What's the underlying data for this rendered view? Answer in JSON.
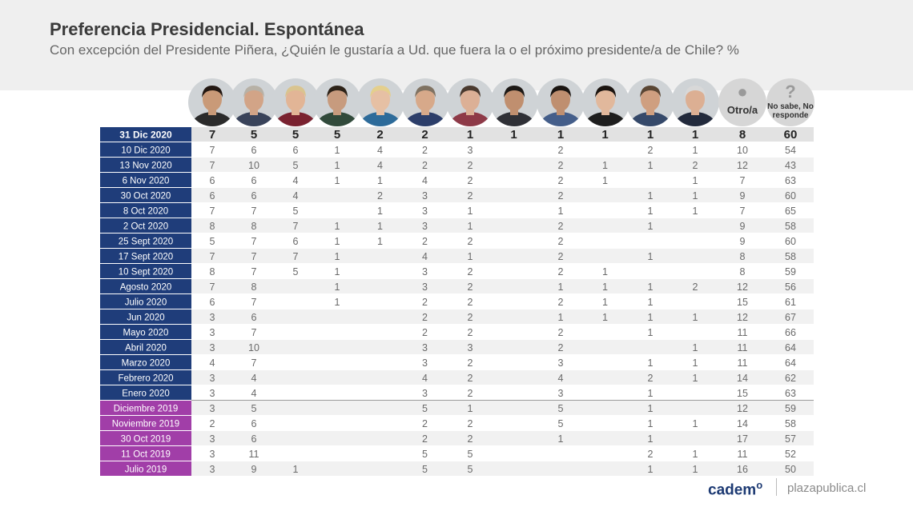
{
  "header": {
    "title": "Preferencia Presidencial. Espontánea",
    "subtitle": "Con excepción del Presidente Piñera, ¿Quién le gustaría a Ud. que fuera la o el próximo presidente/a de Chile? %"
  },
  "candidates": [
    {
      "type": "photo",
      "shirt": "#2b2b2b",
      "skin": "#c99a78",
      "hair": "#231812"
    },
    {
      "type": "photo",
      "shirt": "#39435a",
      "skin": "#d2a487",
      "hair": "#b7b1a6"
    },
    {
      "type": "photo",
      "shirt": "#7a2230",
      "skin": "#e2b596",
      "hair": "#d9c48f"
    },
    {
      "type": "photo",
      "shirt": "#314a3b",
      "skin": "#c79b7e",
      "hair": "#2c2218"
    },
    {
      "type": "photo",
      "shirt": "#2d6b9a",
      "skin": "#e6c0a4",
      "hair": "#e4cf8d"
    },
    {
      "type": "photo",
      "shirt": "#2c3e6a",
      "skin": "#d7a98a",
      "hair": "#7f7262"
    },
    {
      "type": "photo",
      "shirt": "#8e3a48",
      "skin": "#dcb096",
      "hair": "#4a3a2f"
    },
    {
      "type": "photo",
      "shirt": "#2f3036",
      "skin": "#c08f6f",
      "hair": "#1d1916"
    },
    {
      "type": "photo",
      "shirt": "#445e8a",
      "skin": "#bf8f70",
      "hair": "#1a1512"
    },
    {
      "type": "photo",
      "shirt": "#1e1e1e",
      "skin": "#e1b89c",
      "hair": "#1b1410"
    },
    {
      "type": "photo",
      "shirt": "#35496a",
      "skin": "#cf9f80",
      "hair": "#5a4634"
    },
    {
      "type": "photo",
      "shirt": "#222a3c",
      "skin": "#dcaf93",
      "hair": "#d8d8d8"
    },
    {
      "type": "text",
      "label": "Otro/a",
      "icon": "person-icon"
    },
    {
      "type": "text",
      "label": "No sabe, No responde",
      "icon": "question-icon"
    }
  ],
  "chart_data": {
    "type": "table",
    "title": "Preferencia Presidencial. Espontánea",
    "columns": [
      "",
      "",
      "",
      "",
      "",
      "",
      "",
      "",
      "",
      "",
      "",
      "",
      "Otro/a",
      "No sabe, No responde"
    ],
    "rows": [
      {
        "label": "31 Dic 2020",
        "highlight": true,
        "values": [
          "7",
          "5",
          "5",
          "5",
          "2",
          "2",
          "1",
          "1",
          "1",
          "1",
          "1",
          "1",
          "8",
          "60"
        ]
      },
      {
        "label": "10 Dic 2020",
        "values": [
          "7",
          "6",
          "6",
          "1",
          "4",
          "2",
          "3",
          "",
          "2",
          "",
          "2",
          "1",
          "10",
          "54"
        ]
      },
      {
        "label": "13 Nov 2020",
        "values": [
          "7",
          "10",
          "5",
          "1",
          "4",
          "2",
          "2",
          "",
          "2",
          "1",
          "1",
          "2",
          "12",
          "43"
        ]
      },
      {
        "label": "6 Nov 2020",
        "values": [
          "6",
          "6",
          "4",
          "1",
          "1",
          "4",
          "2",
          "",
          "2",
          "1",
          "",
          "1",
          "7",
          "63"
        ]
      },
      {
        "label": "30 Oct 2020",
        "values": [
          "6",
          "6",
          "4",
          "",
          "2",
          "3",
          "2",
          "",
          "2",
          "",
          "1",
          "1",
          "9",
          "60"
        ]
      },
      {
        "label": "8 Oct 2020",
        "values": [
          "7",
          "7",
          "5",
          "",
          "1",
          "3",
          "1",
          "",
          "1",
          "",
          "1",
          "1",
          "7",
          "65"
        ]
      },
      {
        "label": "2 Oct 2020",
        "values": [
          "8",
          "8",
          "7",
          "1",
          "1",
          "3",
          "1",
          "",
          "2",
          "",
          "1",
          "",
          "9",
          "58"
        ]
      },
      {
        "label": "25 Sept 2020",
        "values": [
          "5",
          "7",
          "6",
          "1",
          "1",
          "2",
          "2",
          "",
          "2",
          "",
          "",
          "",
          "9",
          "60"
        ]
      },
      {
        "label": "17 Sept 2020",
        "values": [
          "7",
          "7",
          "7",
          "1",
          "",
          "4",
          "1",
          "",
          "2",
          "",
          "1",
          "",
          "8",
          "58"
        ]
      },
      {
        "label": "10 Sept 2020",
        "values": [
          "8",
          "7",
          "5",
          "1",
          "",
          "3",
          "2",
          "",
          "2",
          "1",
          "",
          "",
          "8",
          "59"
        ]
      },
      {
        "label": "Agosto 2020",
        "values": [
          "7",
          "8",
          "",
          "1",
          "",
          "3",
          "2",
          "",
          "1",
          "1",
          "1",
          "2",
          "12",
          "56"
        ]
      },
      {
        "label": "Julio 2020",
        "values": [
          "6",
          "7",
          "",
          "1",
          "",
          "2",
          "2",
          "",
          "2",
          "1",
          "1",
          "",
          "15",
          "61"
        ]
      },
      {
        "label": "Jun 2020",
        "values": [
          "3",
          "6",
          "",
          "",
          "",
          "2",
          "2",
          "",
          "1",
          "1",
          "1",
          "1",
          "12",
          "67"
        ]
      },
      {
        "label": "Mayo 2020",
        "values": [
          "3",
          "7",
          "",
          "",
          "",
          "2",
          "2",
          "",
          "2",
          "",
          "1",
          "",
          "11",
          "66"
        ]
      },
      {
        "label": "Abril 2020",
        "values": [
          "3",
          "10",
          "",
          "",
          "",
          "3",
          "3",
          "",
          "2",
          "",
          "",
          "1",
          "11",
          "64"
        ]
      },
      {
        "label": "Marzo 2020",
        "values": [
          "4",
          "7",
          "",
          "",
          "",
          "3",
          "2",
          "",
          "3",
          "",
          "1",
          "1",
          "11",
          "64"
        ]
      },
      {
        "label": "Febrero 2020",
        "values": [
          "3",
          "4",
          "",
          "",
          "",
          "4",
          "2",
          "",
          "4",
          "",
          "2",
          "1",
          "14",
          "62"
        ]
      },
      {
        "label": "Enero 2020",
        "values": [
          "3",
          "4",
          "",
          "",
          "",
          "3",
          "2",
          "",
          "3",
          "",
          "1",
          "",
          "15",
          "63"
        ]
      },
      {
        "label": "Diciembre 2019",
        "year": 2019,
        "values": [
          "3",
          "5",
          "",
          "",
          "",
          "5",
          "1",
          "",
          "5",
          "",
          "1",
          "",
          "12",
          "59"
        ]
      },
      {
        "label": "Noviembre 2019",
        "year": 2019,
        "values": [
          "2",
          "6",
          "",
          "",
          "",
          "2",
          "2",
          "",
          "5",
          "",
          "1",
          "1",
          "14",
          "58"
        ]
      },
      {
        "label": "30 Oct 2019",
        "year": 2019,
        "values": [
          "3",
          "6",
          "",
          "",
          "",
          "2",
          "2",
          "",
          "1",
          "",
          "1",
          "",
          "17",
          "57"
        ]
      },
      {
        "label": "11 Oct 2019",
        "year": 2019,
        "values": [
          "3",
          "11",
          "",
          "",
          "",
          "5",
          "5",
          "",
          "",
          "",
          "2",
          "1",
          "11",
          "52"
        ]
      },
      {
        "label": "Julio 2019",
        "year": 2019,
        "values": [
          "3",
          "9",
          "1",
          "",
          "",
          "5",
          "5",
          "",
          "",
          "",
          "1",
          "1",
          "16",
          "50"
        ]
      }
    ],
    "colors": {
      "label_2020": "#1f3d7a",
      "label_2019": "#a13ea8",
      "header_row": "#e2e2e2",
      "stripe": "#f1f1f1",
      "text": "#6a6a6a",
      "header_text": "#222222"
    }
  },
  "footer": {
    "logo": "cadem",
    "logo_mark": "o",
    "site": "plazapublica.cl"
  }
}
